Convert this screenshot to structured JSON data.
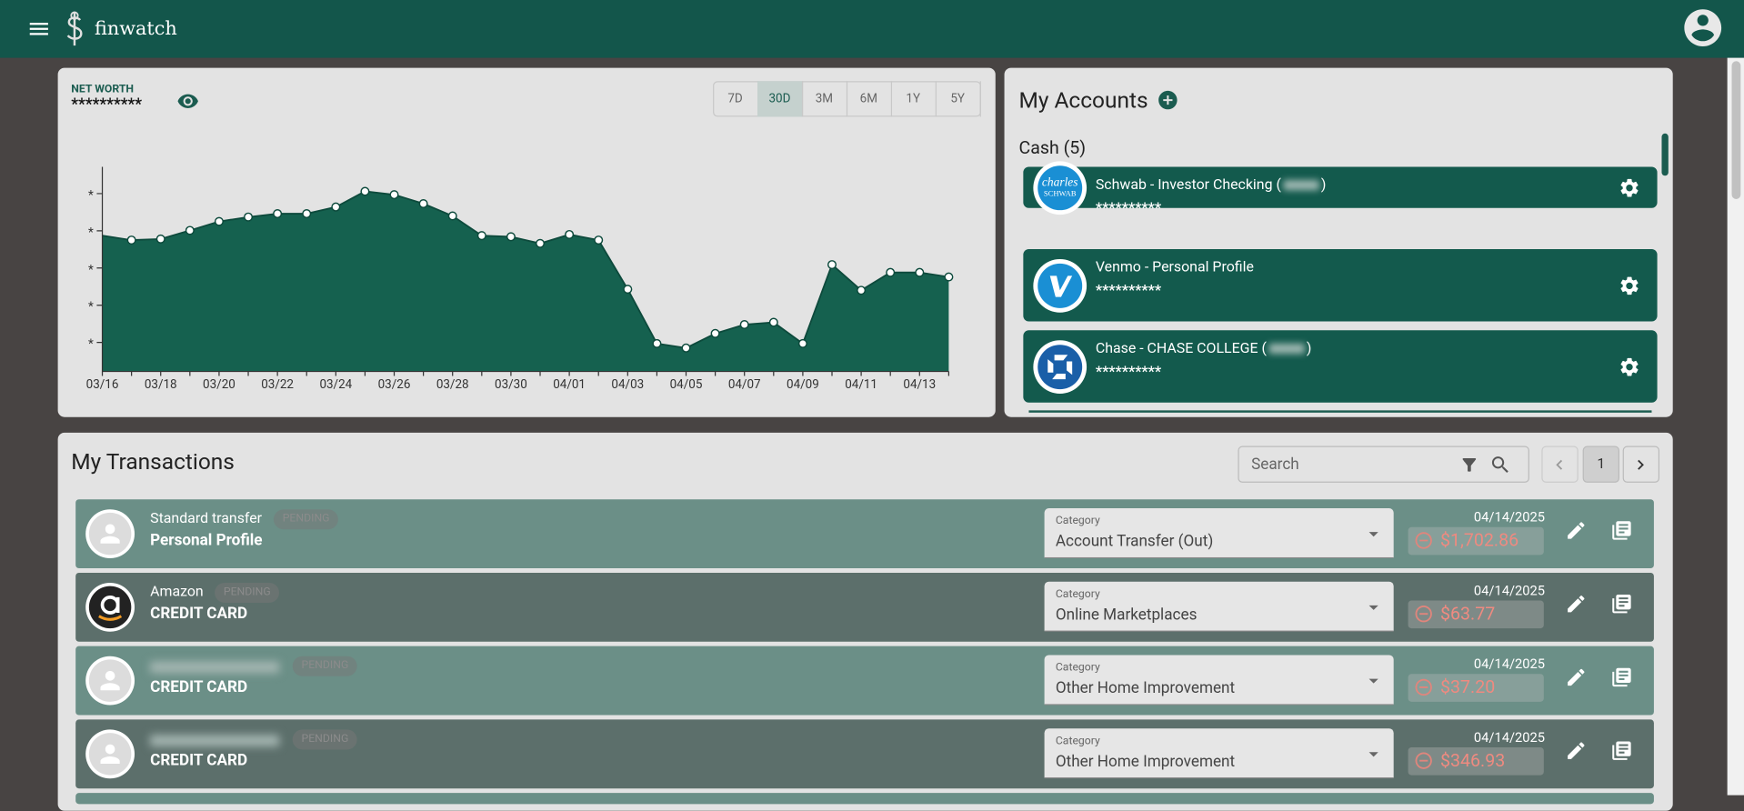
{
  "header": {
    "app_name": "finwatch"
  },
  "net_worth": {
    "label": "NET WORTH",
    "value": "**********",
    "ranges": [
      {
        "label": "7D",
        "selected": false
      },
      {
        "label": "30D",
        "selected": true
      },
      {
        "label": "3M",
        "selected": false
      },
      {
        "label": "6M",
        "selected": false
      },
      {
        "label": "1Y",
        "selected": false
      },
      {
        "label": "5Y",
        "selected": false
      }
    ]
  },
  "chart_data": {
    "type": "area",
    "color": "#15614f",
    "line_color": "#0d4a3c",
    "point_color": "#ffffff",
    "categories": [
      "03/16",
      null,
      "03/18",
      null,
      "03/20",
      null,
      "03/22",
      null,
      "03/24",
      null,
      "03/26",
      null,
      "03/28",
      null,
      "03/30",
      null,
      "04/01",
      null,
      "04/03",
      null,
      "04/05",
      null,
      "04/07",
      null,
      "04/09",
      null,
      "04/11",
      null,
      "04/13",
      null
    ],
    "values": [
      3.87,
      3.75,
      3.78,
      4.01,
      4.25,
      4.37,
      4.46,
      4.46,
      4.64,
      5.06,
      4.97,
      4.73,
      4.4,
      3.87,
      3.84,
      3.66,
      3.9,
      3.75,
      2.43,
      0.97,
      0.85,
      1.24,
      1.48,
      1.54,
      0.97,
      3.09,
      2.4,
      2.88,
      2.88,
      2.76
    ],
    "ylim": [
      0.22,
      5.72
    ],
    "yticks": [
      {
        "value": 1,
        "label": "*"
      },
      {
        "value": 2,
        "label": "*"
      },
      {
        "value": 3,
        "label": "*"
      },
      {
        "value": 4,
        "label": "*"
      },
      {
        "value": 5,
        "label": "*"
      }
    ]
  },
  "accounts": {
    "title": "My Accounts",
    "group": "Cash (5)",
    "items": [
      {
        "name": "Schwab - Investor Checking (",
        "name_end": ")",
        "balance": "**********",
        "logo": "schwab",
        "logo_text": [
          "charles",
          "SCHWAB"
        ]
      },
      {
        "name": "Venmo - Personal Profile",
        "balance": "**********",
        "logo": "venmo"
      },
      {
        "name": "Chase - CHASE COLLEGE (",
        "name_end": ")",
        "balance": "**********",
        "logo": "chase"
      }
    ]
  },
  "transactions": {
    "title": "My Transactions",
    "search_placeholder": "Search",
    "page": "1",
    "rows": [
      {
        "merchant": "Standard transfer",
        "status": "PENDING",
        "account": "Personal Profile",
        "category_label": "Category",
        "category": "Account Transfer (Out)",
        "date": "04/14/2025",
        "amount": "$1,702.86"
      },
      {
        "merchant": "Amazon",
        "logo": "amazon",
        "status": "PENDING",
        "account": "CREDIT CARD",
        "category_label": "Category",
        "category": "Online Marketplaces",
        "date": "04/14/2025",
        "amount": "$63.77"
      },
      {
        "status": "PENDING",
        "account": "CREDIT CARD",
        "category_label": "Category",
        "category": "Other Home Improvement",
        "date": "04/14/2025",
        "amount": "$37.20"
      },
      {
        "status": "PENDING",
        "account": "CREDIT CARD",
        "category_label": "Category",
        "category": "Other Home Improvement",
        "date": "04/14/2025",
        "amount": "$346.93"
      }
    ]
  }
}
